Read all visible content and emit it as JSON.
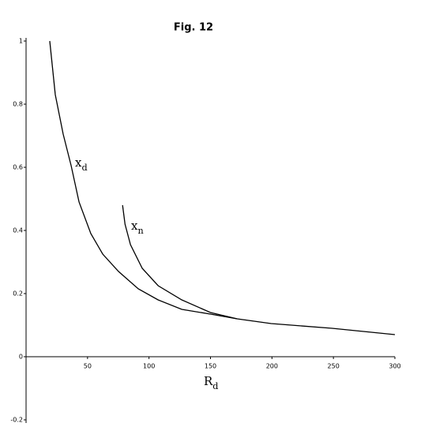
{
  "chart_data": {
    "type": "line",
    "title": "Fig. 12",
    "xlabel": "Rd",
    "xlim": [
      0,
      300
    ],
    "ylim": [
      -0.2,
      1
    ],
    "xticks": [
      50,
      100,
      150,
      200,
      250,
      300
    ],
    "yticks": [
      1,
      0.8,
      0.6,
      0.4,
      0.2,
      0,
      -0.2
    ],
    "grid": false,
    "series": [
      {
        "name": "xd",
        "color": "#000000",
        "x": [
          19.3,
          23.8,
          30.2,
          36.7,
          43.1,
          52.7,
          62.4,
          75.2,
          91.3,
          107.4,
          126.7,
          150,
          171.7,
          199.4,
          248.9,
          300
        ],
        "values": [
          1.0,
          0.83,
          0.705,
          0.605,
          0.49,
          0.39,
          0.325,
          0.27,
          0.215,
          0.18,
          0.15,
          0.135,
          0.12,
          0.105,
          0.09,
          0.07
        ]
      },
      {
        "name": "xn",
        "color": "#000000",
        "x": [
          78.5,
          80.5,
          84.9,
          94.5,
          107.4,
          126.7,
          150,
          171.7
        ],
        "values": [
          0.48,
          0.42,
          0.355,
          0.28,
          0.225,
          0.18,
          0.14,
          0.12
        ]
      }
    ]
  }
}
